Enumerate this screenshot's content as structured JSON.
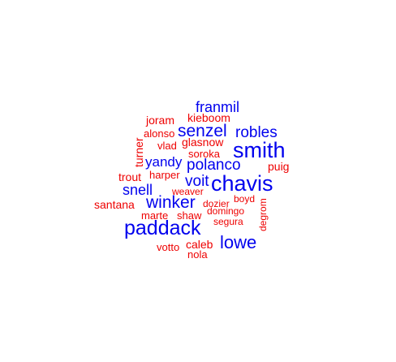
{
  "colors": {
    "blue": "#0000ee",
    "red": "#ee0000"
  },
  "words": [
    {
      "text": "franmil",
      "color": "blue"
    },
    {
      "text": "kieboom",
      "color": "red"
    },
    {
      "text": "joram",
      "color": "red"
    },
    {
      "text": "senzel",
      "color": "blue"
    },
    {
      "text": "robles",
      "color": "blue"
    },
    {
      "text": "alonso",
      "color": "red"
    },
    {
      "text": "turner",
      "color": "red"
    },
    {
      "text": "glasnow",
      "color": "red"
    },
    {
      "text": "vlad",
      "color": "red"
    },
    {
      "text": "smith",
      "color": "blue"
    },
    {
      "text": "soroka",
      "color": "red"
    },
    {
      "text": "yandy",
      "color": "blue"
    },
    {
      "text": "polanco",
      "color": "blue"
    },
    {
      "text": "puig",
      "color": "red"
    },
    {
      "text": "trout",
      "color": "red"
    },
    {
      "text": "harper",
      "color": "red"
    },
    {
      "text": "voit",
      "color": "blue"
    },
    {
      "text": "chavis",
      "color": "blue"
    },
    {
      "text": "snell",
      "color": "blue"
    },
    {
      "text": "weaver",
      "color": "red"
    },
    {
      "text": "boyd",
      "color": "red"
    },
    {
      "text": "santana",
      "color": "red"
    },
    {
      "text": "winker",
      "color": "blue"
    },
    {
      "text": "dozier",
      "color": "red"
    },
    {
      "text": "degrom",
      "color": "red"
    },
    {
      "text": "domingo",
      "color": "red"
    },
    {
      "text": "marte",
      "color": "red"
    },
    {
      "text": "shaw",
      "color": "red"
    },
    {
      "text": "segura",
      "color": "red"
    },
    {
      "text": "paddack",
      "color": "blue"
    },
    {
      "text": "lowe",
      "color": "blue"
    },
    {
      "text": "caleb",
      "color": "red"
    },
    {
      "text": "votto",
      "color": "red"
    },
    {
      "text": "nola",
      "color": "red"
    }
  ]
}
